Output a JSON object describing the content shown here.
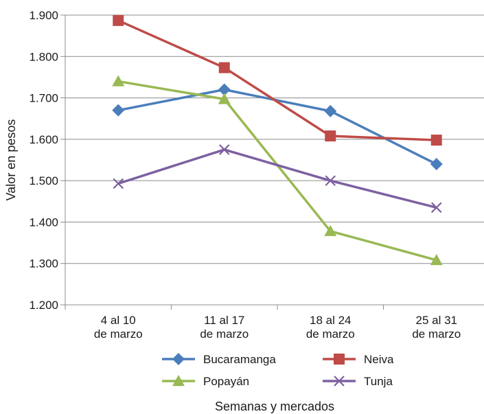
{
  "chart_data": {
    "type": "line",
    "title": "",
    "xlabel": "Semanas y mercados",
    "ylabel": "Valor en pesos",
    "ylim": [
      1200,
      1900
    ],
    "yticks": [
      1200,
      1300,
      1400,
      1500,
      1600,
      1700,
      1800,
      1900
    ],
    "ytick_labels": [
      "1.200",
      "1.300",
      "1.400",
      "1.500",
      "1.600",
      "1.700",
      "1.800",
      "1.900"
    ],
    "categories": [
      [
        "4 al 10",
        "de marzo"
      ],
      [
        "11 al 17",
        "de marzo"
      ],
      [
        "18 al 24",
        "de marzo"
      ],
      [
        "25 al 31",
        "de marzo"
      ]
    ],
    "grid": "horizontal",
    "legend_position": "bottom",
    "series": [
      {
        "name": "Bucaramanga",
        "values": [
          1670,
          1720,
          1668,
          1540
        ],
        "color": "#4a7ebb",
        "marker": "diamond"
      },
      {
        "name": "Neiva",
        "values": [
          1887,
          1773,
          1608,
          1598
        ],
        "color": "#be4b48",
        "marker": "square"
      },
      {
        "name": "Popayán",
        "values": [
          1740,
          1697,
          1378,
          1308
        ],
        "color": "#98b954",
        "marker": "triangle"
      },
      {
        "name": "Tunja",
        "values": [
          1493,
          1575,
          1500,
          1435
        ],
        "color": "#7d60a0",
        "marker": "x"
      }
    ]
  }
}
